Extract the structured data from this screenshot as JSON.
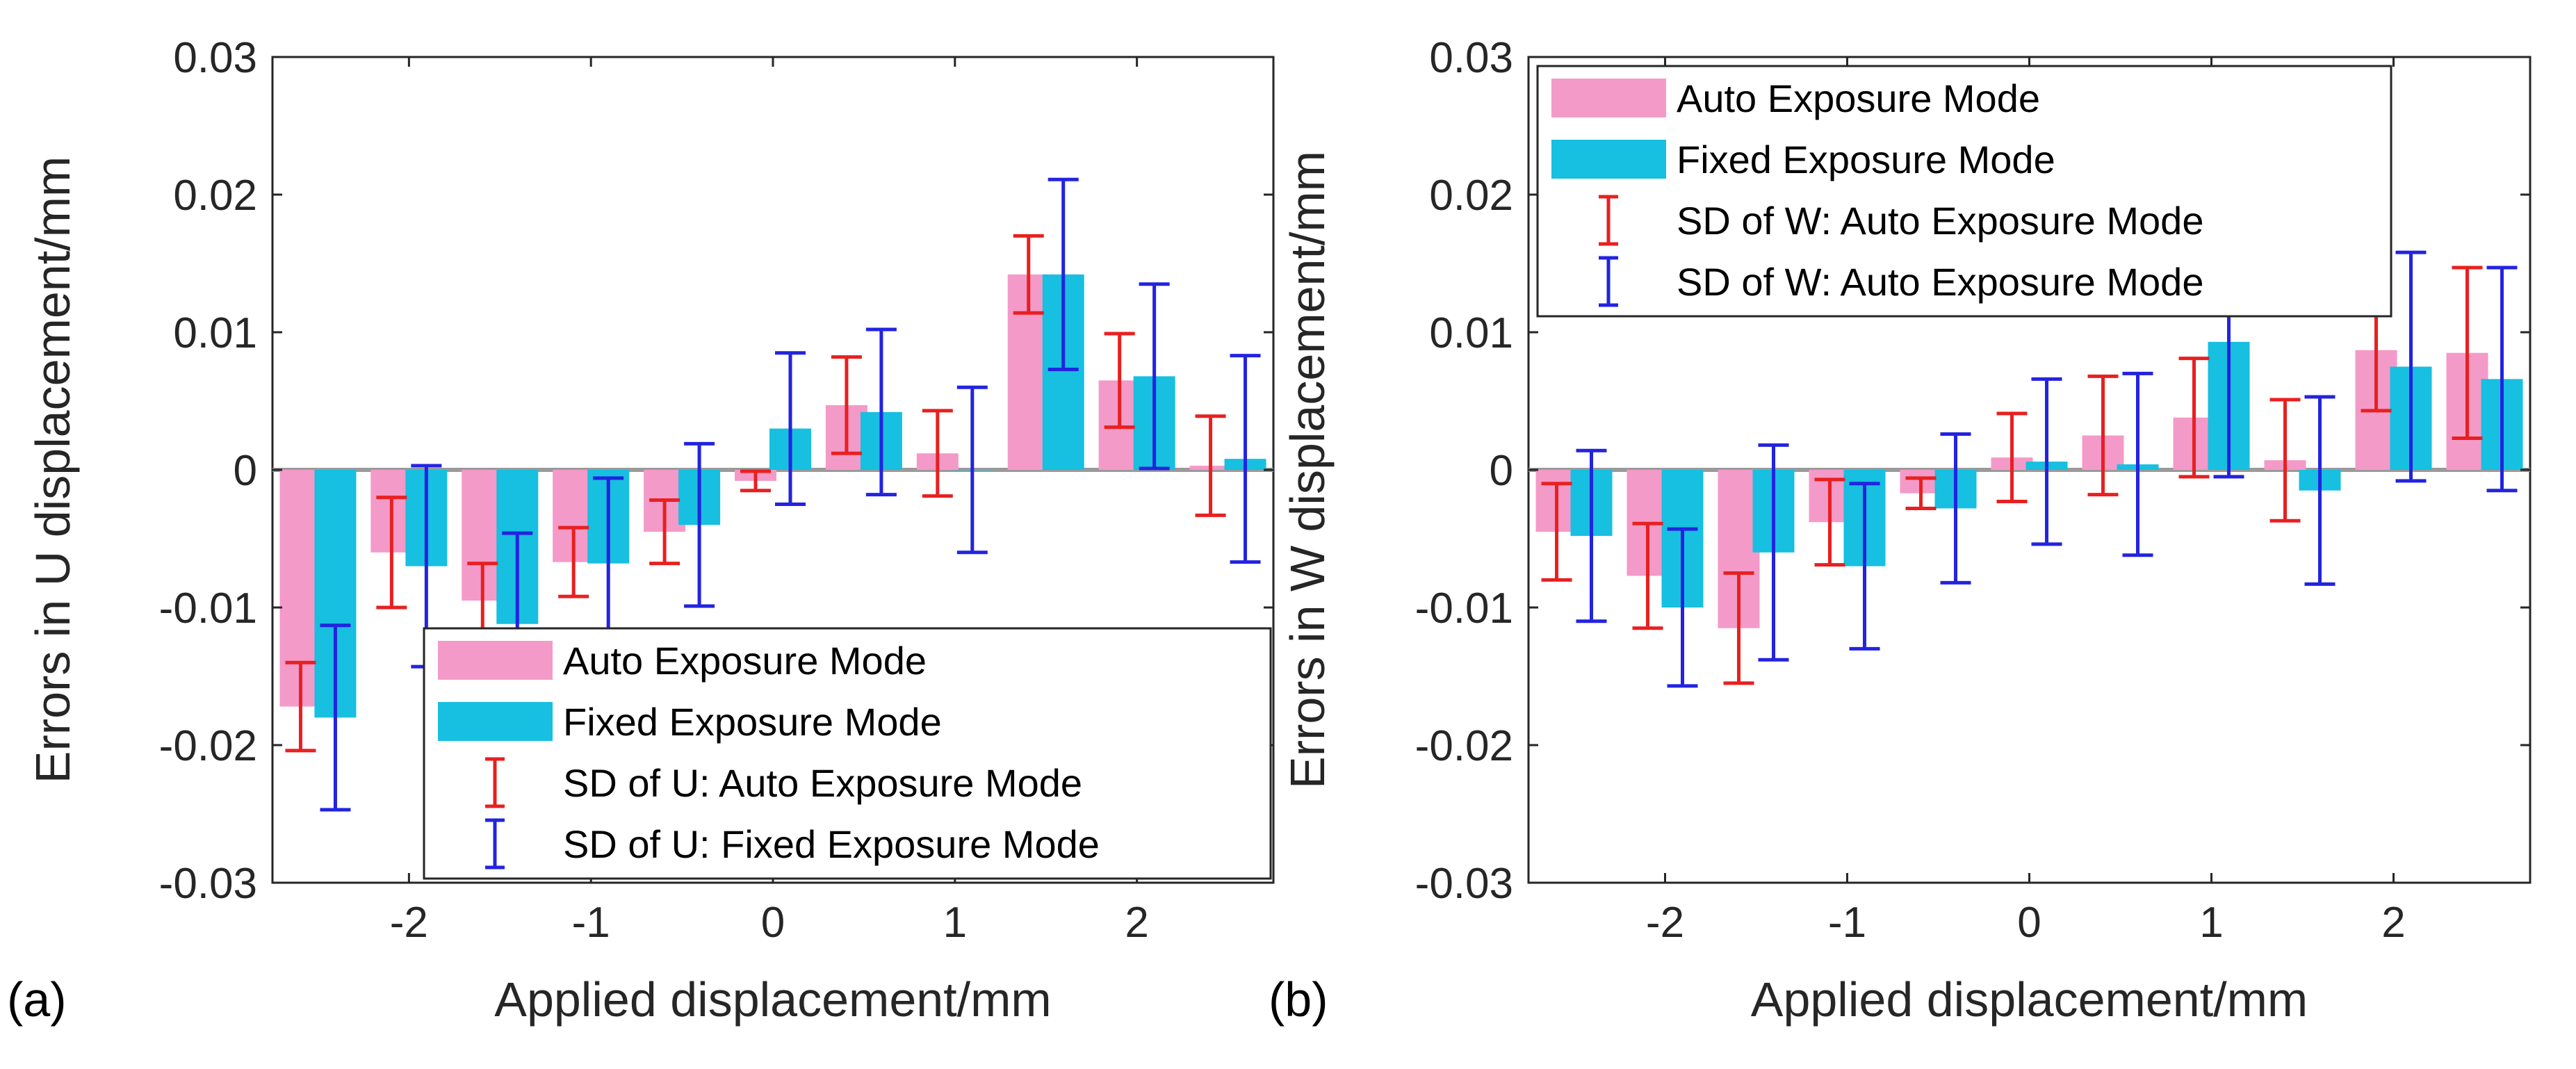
{
  "colors": {
    "auto_bar": "#f49ac8",
    "fixed_bar": "#17bfe0",
    "auto_err": "#e82020",
    "fixed_err": "#2323e0",
    "zero_line": "#9a9a9a",
    "axes": "#262626"
  },
  "chart_data": [
    {
      "type": "bar",
      "panel_label": "(a)",
      "xlabel": "Applied displacement/mm",
      "ylabel": "Errors in U displacement/mm",
      "ylim": [
        -0.03,
        0.03
      ],
      "yticks": [
        -0.03,
        -0.02,
        -0.01,
        0,
        0.01,
        0.02,
        0.03
      ],
      "ytick_labels": [
        "-0.03",
        "-0.02",
        "-0.01",
        "0",
        "0.01",
        "0.02",
        "0.03"
      ],
      "xlim": [
        -2.75,
        2.75
      ],
      "xticks": [
        -2,
        -1,
        0,
        1,
        2
      ],
      "xtick_labels": [
        "-2",
        "-1",
        "0",
        "1",
        "2"
      ],
      "x": [
        -2.5,
        -2.0,
        -1.5,
        -1.0,
        -0.5,
        0.0,
        0.5,
        1.0,
        1.5,
        2.0,
        2.5
      ],
      "series": [
        {
          "name": "Auto Exposure Mode",
          "values": [
            -0.0172,
            -0.006,
            -0.0095,
            -0.0067,
            -0.0045,
            -0.0008,
            0.0047,
            0.0012,
            0.0142,
            0.0065,
            0.0003
          ],
          "sd": [
            0.0032,
            0.004,
            0.0027,
            0.0025,
            0.0023,
            0.0007,
            0.0035,
            0.0031,
            0.0028,
            0.0034,
            0.0036
          ]
        },
        {
          "name": "Fixed Exposure Mode",
          "values": [
            -0.018,
            -0.007,
            -0.0112,
            -0.0068,
            -0.004,
            0.003,
            0.0042,
            0.0,
            0.0142,
            0.0068,
            0.0008
          ],
          "sd": [
            0.0067,
            0.0073,
            0.0066,
            0.0062,
            0.0059,
            0.0055,
            0.006,
            0.006,
            0.0069,
            0.0067,
            0.0075
          ]
        }
      ],
      "legend": {
        "placement": "bottom-right",
        "entries": [
          "Auto Exposure Mode",
          "Fixed Exposure Mode",
          "SD of U: Auto Exposure Mode",
          "SD of U: Fixed Exposure Mode"
        ]
      },
      "grid": false
    },
    {
      "type": "bar",
      "panel_label": "(b)",
      "xlabel": "Applied displacement/mm",
      "ylabel": "Errors in W displacement/mm",
      "ylim": [
        -0.03,
        0.03
      ],
      "yticks": [
        -0.03,
        -0.02,
        -0.01,
        0,
        0.01,
        0.02,
        0.03
      ],
      "ytick_labels": [
        "-0.03",
        "-0.02",
        "-0.01",
        "0",
        "0.01",
        "0.02",
        "0.03"
      ],
      "xlim": [
        -2.75,
        2.75
      ],
      "xticks": [
        -2,
        -1,
        0,
        1,
        2
      ],
      "xtick_labels": [
        "-2",
        "-1",
        "0",
        "1",
        "2"
      ],
      "x": [
        -2.5,
        -2.0,
        -1.5,
        -1.0,
        -0.5,
        0.0,
        0.5,
        1.0,
        1.5,
        2.0,
        2.5
      ],
      "series": [
        {
          "name": "Auto Exposure Mode",
          "values": [
            -0.0045,
            -0.0077,
            -0.0115,
            -0.0038,
            -0.0017,
            0.0009,
            0.0025,
            0.0038,
            0.0007,
            0.0087,
            0.0085
          ],
          "sd": [
            0.0035,
            0.0038,
            0.004,
            0.0031,
            0.0011,
            0.0032,
            0.0043,
            0.0043,
            0.0044,
            0.0044,
            0.0062
          ]
        },
        {
          "name": "Fixed Exposure Mode",
          "values": [
            -0.0048,
            -0.01,
            -0.006,
            -0.007,
            -0.0028,
            0.0006,
            0.0004,
            0.0093,
            -0.0015,
            0.0075,
            0.0066
          ],
          "sd": [
            0.0062,
            0.0057,
            0.0078,
            0.006,
            0.0054,
            0.006,
            0.0066,
            0.0098,
            0.0068,
            0.0083,
            0.0081
          ]
        }
      ],
      "legend": {
        "placement": "top-left",
        "entries": [
          "Auto Exposure Mode",
          "Fixed Exposure Mode",
          "SD of W: Auto Exposure Mode",
          "SD of W: Auto Exposure Mode"
        ]
      },
      "grid": false
    }
  ]
}
